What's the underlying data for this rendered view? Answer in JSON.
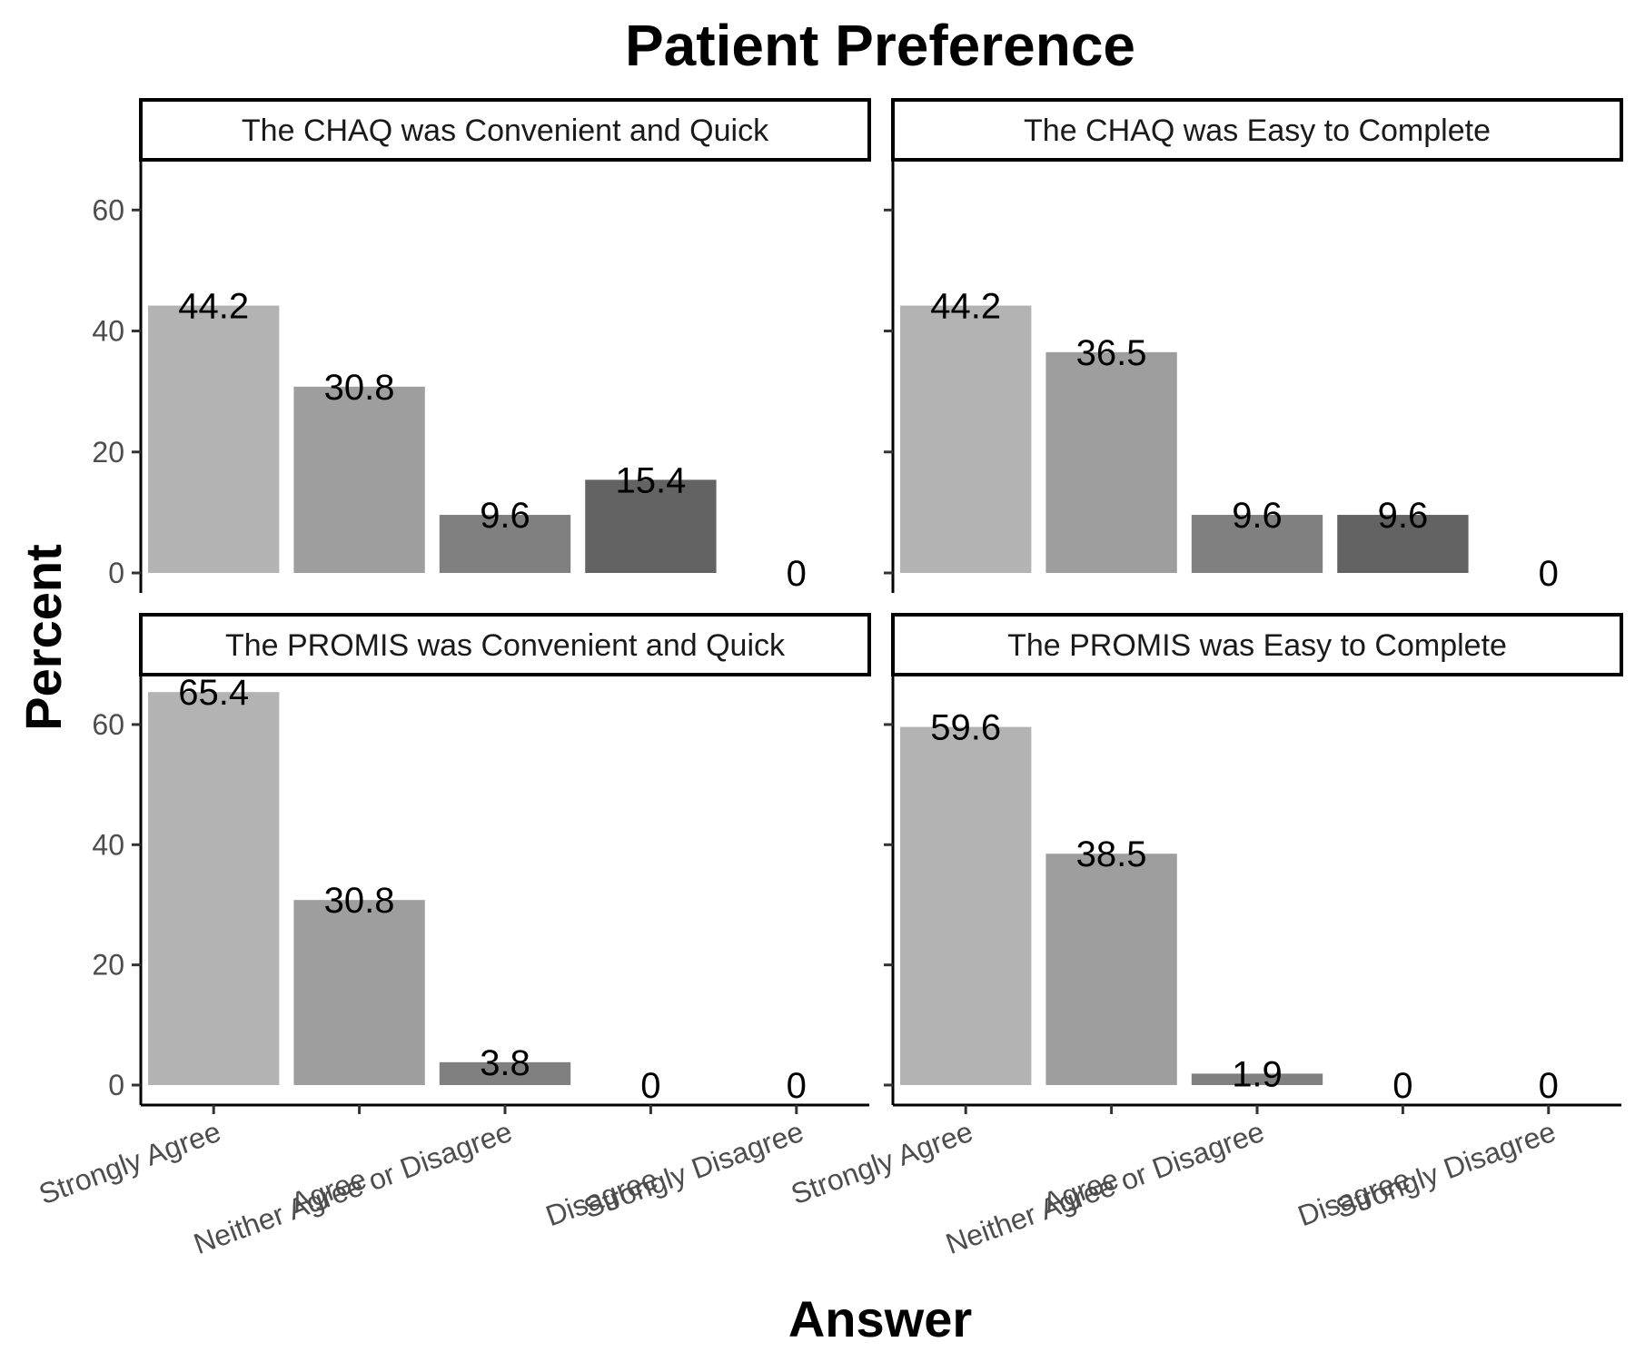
{
  "chart_data": {
    "type": "bar",
    "title": "Patient Preference",
    "xlabel": "Answer",
    "ylabel": "Percent",
    "ylim": [
      0,
      68
    ],
    "yticks": [
      0,
      20,
      40,
      60
    ],
    "categories": [
      "Strongly Agree",
      "Agree",
      "Neither Agree or Disagree",
      "Disagree",
      "Strongly Disagree"
    ],
    "category_colors": [
      "#b3b3b3",
      "#9e9e9e",
      "#808080",
      "#636363",
      "#474747"
    ],
    "grid": false,
    "legend": "none",
    "facets": [
      {
        "title": "The CHAQ was Convenient and Quick",
        "values": [
          44.2,
          30.8,
          9.6,
          15.4,
          0
        ]
      },
      {
        "title": "The CHAQ was Easy to Complete",
        "values": [
          44.2,
          36.5,
          9.6,
          9.6,
          0
        ]
      },
      {
        "title": "The PROMIS was Convenient and Quick",
        "values": [
          65.4,
          30.8,
          3.8,
          0,
          0
        ]
      },
      {
        "title": "The PROMIS was Easy to Complete",
        "values": [
          59.6,
          38.5,
          1.9,
          0,
          0
        ]
      }
    ]
  }
}
